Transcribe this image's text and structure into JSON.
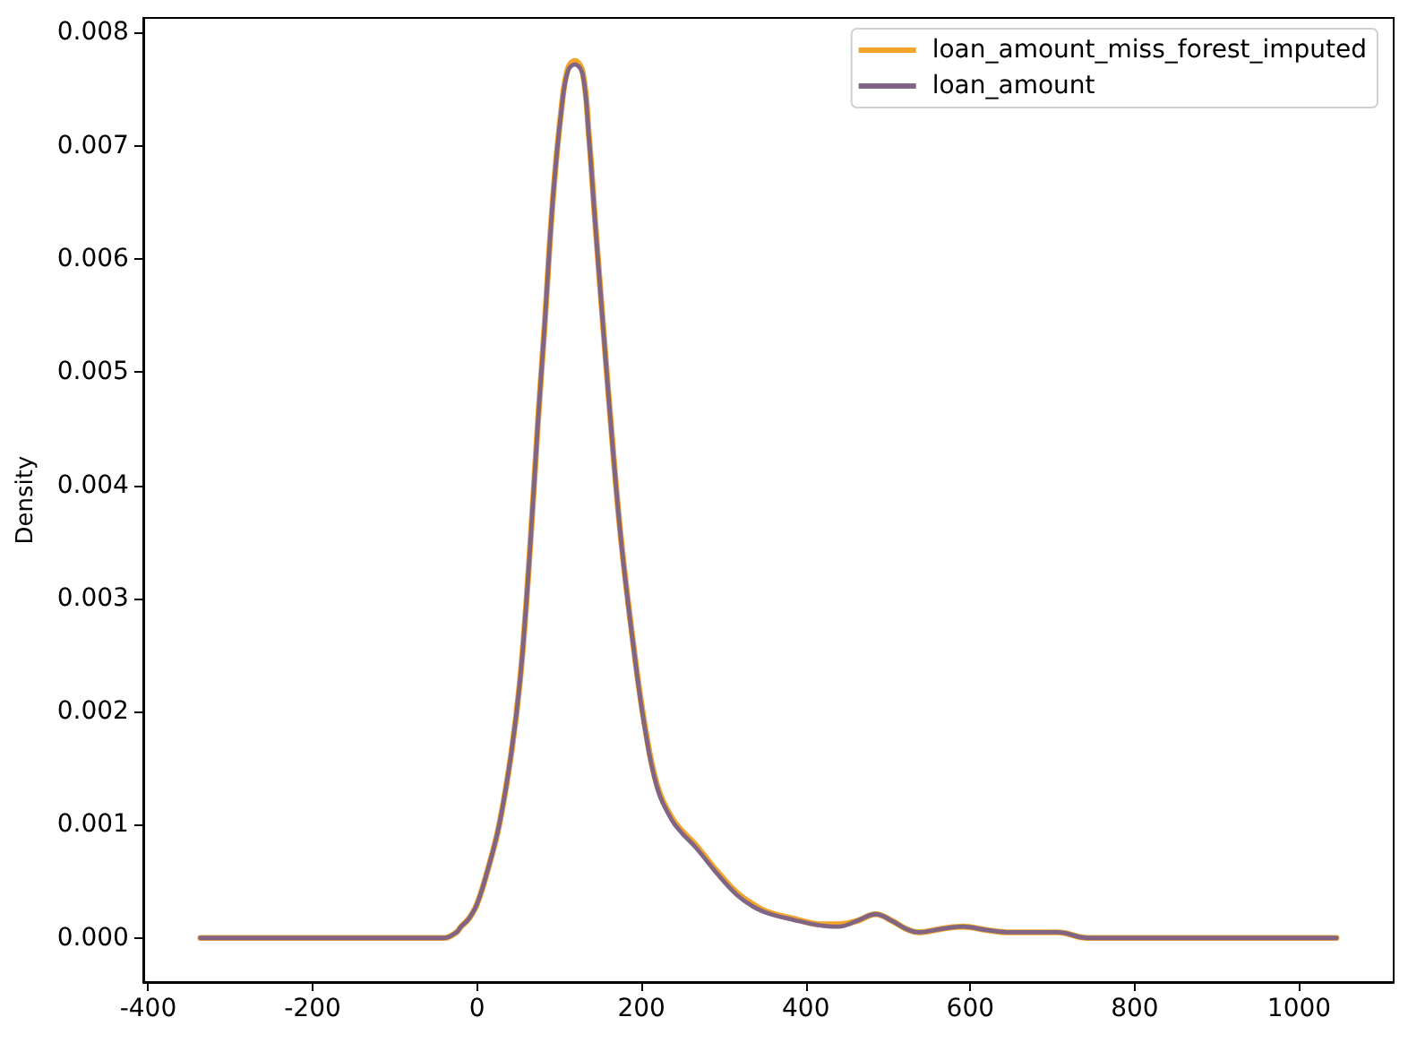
{
  "chart_data": {
    "type": "line",
    "ylabel": "Density",
    "xlim": [
      -406,
      1115
    ],
    "ylim": [
      -0.00039,
      0.00813
    ],
    "xticks": [
      -400,
      -200,
      0,
      200,
      400,
      600,
      800,
      1000
    ],
    "yticks": [
      {
        "value": 0,
        "label": "0.000"
      },
      {
        "value": 0.001,
        "label": "0.001"
      },
      {
        "value": 0.002,
        "label": "0.002"
      },
      {
        "value": 0.003,
        "label": "0.003"
      },
      {
        "value": 0.004,
        "label": "0.004"
      },
      {
        "value": 0.005,
        "label": "0.005"
      },
      {
        "value": 0.006,
        "label": "0.006"
      },
      {
        "value": 0.007,
        "label": "0.007"
      },
      {
        "value": 0.008,
        "label": "0.008"
      }
    ],
    "legend": "top right",
    "series": [
      {
        "name": "loan_amount_miss_forest_imputed",
        "color": "#f5a42a",
        "x": [
          -336.5,
          -150,
          -80,
          -40,
          -25,
          -19.5,
          -10,
          0,
          13,
          27,
          42,
          53,
          64,
          74,
          82,
          92.5,
          103,
          110.5,
          119,
          128.5,
          136,
          143,
          154,
          165,
          175.5,
          190,
          204,
          219,
          237,
          250,
          266,
          293,
          316,
          335,
          353,
          385,
          418,
          440,
          462,
          485,
          505,
          522,
          537,
          565,
          591,
          620,
          648,
          706,
          743,
          800,
          900,
          1045.5
        ],
        "values": [
          0,
          0,
          0,
          0,
          5e-05,
          0.0001,
          0.00017,
          0.0003,
          0.0006,
          0.001,
          0.00165,
          0.00233,
          0.00339,
          0.00455,
          0.00539,
          0.00655,
          0.00735,
          0.00768,
          0.00775,
          0.00765,
          0.0071,
          0.0064,
          0.00535,
          0.00435,
          0.0035,
          0.0026,
          0.00188,
          0.00135,
          0.00106,
          0.00094,
          0.00082,
          0.00058,
          0.0004,
          0.0003,
          0.00023,
          0.00017,
          0.00012,
          0.00012,
          0.00015,
          0.00021,
          0.00015,
          8e-05,
          5e-05,
          8e-05,
          0.0001,
          7e-05,
          5e-05,
          5e-05,
          0,
          0,
          0,
          0
        ]
      },
      {
        "name": "loan_amount",
        "color": "#806585",
        "x": [
          -336.5,
          -150,
          -80,
          -40,
          -25,
          -19.5,
          -10,
          0,
          13,
          27,
          42,
          53,
          64,
          74,
          82,
          92.5,
          103,
          110.5,
          119,
          128.5,
          136,
          143,
          154,
          165,
          175.5,
          190,
          204,
          219,
          237,
          250,
          266,
          293,
          316,
          335,
          353,
          385,
          418,
          440,
          462,
          485,
          505,
          522,
          537,
          565,
          591,
          620,
          648,
          706,
          743,
          800,
          900,
          1045.5
        ],
        "values": [
          0,
          0,
          0,
          0,
          5e-05,
          0.0001,
          0.00017,
          0.0003,
          0.0006,
          0.001,
          0.00165,
          0.00233,
          0.00339,
          0.00455,
          0.00539,
          0.00655,
          0.00734,
          0.00766,
          0.00772,
          0.00763,
          0.00708,
          0.00639,
          0.00534,
          0.00434,
          0.00349,
          0.00259,
          0.00186,
          0.00133,
          0.00104,
          0.00092,
          0.0008,
          0.00056,
          0.00038,
          0.00028,
          0.00022,
          0.00016,
          0.00011,
          0.0001,
          0.00015,
          0.00021,
          0.00015,
          8e-05,
          5e-05,
          8e-05,
          0.0001,
          7e-05,
          5e-05,
          5e-05,
          0,
          0,
          0,
          0
        ]
      }
    ]
  }
}
